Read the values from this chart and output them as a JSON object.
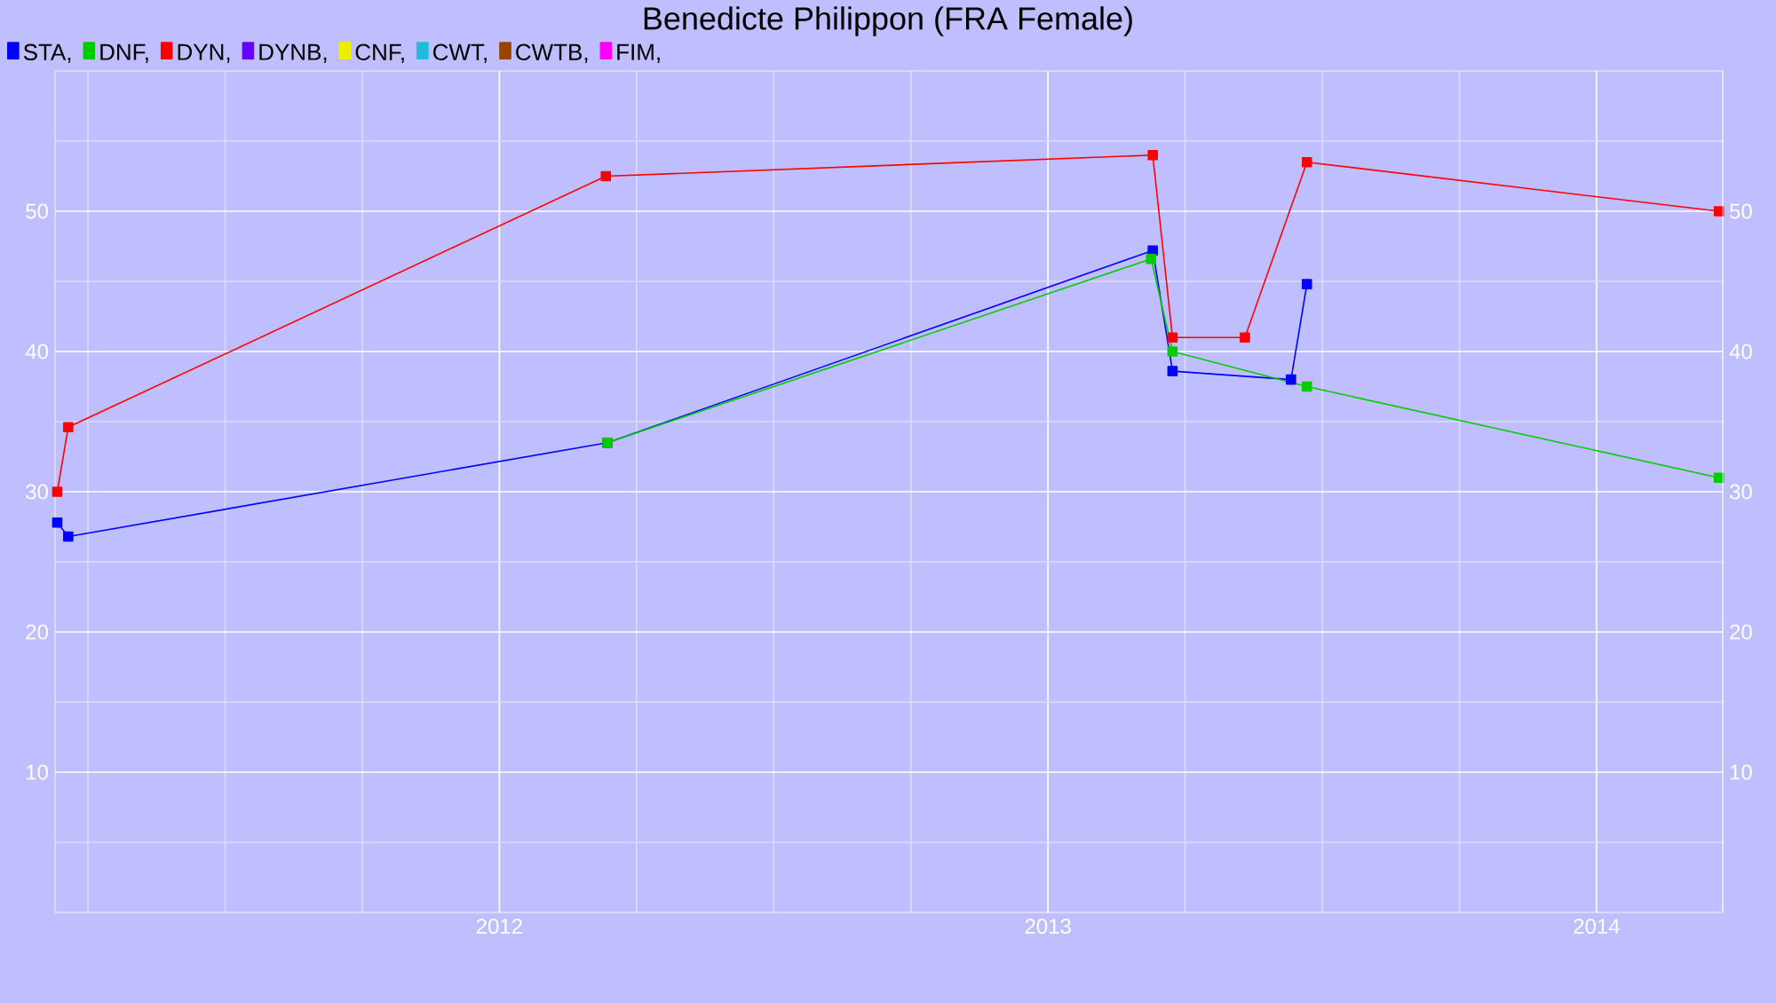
{
  "chart_data": {
    "type": "line",
    "title": "Benedicte Philippon (FRA Female)",
    "series": [
      {
        "name": "STA,",
        "color": "#0000ff",
        "x": [
          2011.194,
          2011.214,
          2012.197,
          2013.191,
          2013.227,
          2013.443,
          2013.472
        ],
        "values": [
          27.8,
          26.8,
          33.5,
          47.2,
          38.6,
          38.0,
          44.8
        ]
      },
      {
        "name": "DNF,",
        "color": "#00cc00",
        "x": [
          2012.197,
          2013.188,
          2013.227,
          2013.472,
          2014.223
        ],
        "values": [
          33.5,
          46.6,
          40.0,
          37.5,
          31.0
        ]
      },
      {
        "name": "DYN,",
        "color": "#ff0000",
        "x": [
          2011.194,
          2011.214,
          2012.194,
          2013.191,
          2013.227,
          2013.359,
          2013.472,
          2014.223
        ],
        "values": [
          30.0,
          34.6,
          52.5,
          54.0,
          41.0,
          41.0,
          53.5,
          50.0
        ]
      },
      {
        "name": "DYNB,",
        "color": "#6600ff"
      },
      {
        "name": "CNF,",
        "color": "#eeee00"
      },
      {
        "name": "CWT,",
        "color": "#22bbdd"
      },
      {
        "name": "CWTB,",
        "color": "#994400"
      },
      {
        "name": "FIM,",
        "color": "#ff00ff"
      }
    ],
    "xlim": [
      2011.19,
      2014.23
    ],
    "xticks": [
      {
        "value": 2011.25,
        "label": null
      },
      {
        "value": 2011.5,
        "label": null
      },
      {
        "value": 2011.75,
        "label": null
      },
      2012,
      {
        "value": 2012.25,
        "label": null
      },
      {
        "value": 2012.5,
        "label": null
      },
      {
        "value": 2012.75,
        "label": null
      },
      2013,
      {
        "value": 2013.25,
        "label": null
      },
      {
        "value": 2013.5,
        "label": null
      },
      {
        "value": 2013.75,
        "label": null
      },
      2014
    ],
    "ylim": [
      0,
      60
    ],
    "yticks": [
      {
        "value": 5,
        "label": null
      },
      10,
      {
        "value": 15,
        "label": null
      },
      20,
      {
        "value": 25,
        "label": null
      },
      30,
      {
        "value": 35,
        "label": null
      },
      40,
      {
        "value": 45,
        "label": null
      },
      50,
      {
        "value": 55,
        "label": null
      }
    ],
    "y2lim": [
      0,
      60
    ],
    "y2ticks": [
      10,
      20,
      30,
      40,
      50
    ],
    "grid": true,
    "legend": "top left",
    "marker": "square",
    "line_style": "solid"
  }
}
